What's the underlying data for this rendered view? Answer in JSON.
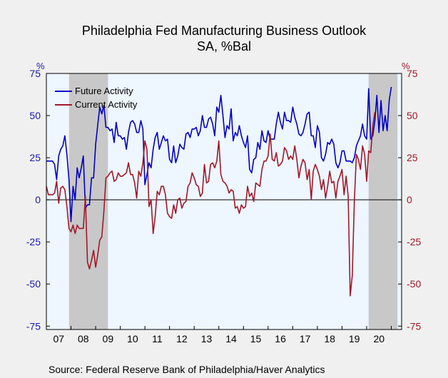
{
  "chart_data": {
    "type": "line",
    "title": "Philadelphia Fed Manufacturing Business Outlook",
    "subtitle": "SA, %Bal",
    "y_unit_left": "%",
    "y_unit_right": "%",
    "ylim": [
      -77,
      75
    ],
    "yticks": [
      75,
      50,
      25,
      0,
      -25,
      -50,
      -75
    ],
    "yticks_right": [
      75,
      50,
      25,
      0,
      -25,
      -50,
      -75
    ],
    "xlim": [
      2007.0,
      2021.42
    ],
    "xticks": [
      "07",
      "08",
      "09",
      "10",
      "11",
      "12",
      "13",
      "14",
      "15",
      "16",
      "17",
      "18",
      "19",
      "20"
    ],
    "recessions": [
      [
        2007.92,
        2009.5
      ],
      [
        2020.08,
        2021.25
      ]
    ],
    "legend_position": "top-left",
    "series": [
      {
        "name": "Future Activity",
        "color": "#0000c0",
        "start": 2007.0,
        "step": 0.0833333,
        "values": [
          23,
          23,
          23,
          23,
          21,
          12,
          26,
          30,
          32,
          38,
          27,
          12,
          -13,
          8,
          0,
          19,
          13,
          19,
          26,
          -5,
          -3,
          -3,
          13,
          13,
          33,
          44,
          55,
          51,
          56,
          43,
          43,
          41,
          42,
          34,
          46,
          38,
          38,
          36,
          37,
          30,
          40,
          46,
          47,
          45,
          40,
          40,
          47,
          42,
          9,
          15,
          22,
          19,
          30,
          37,
          40,
          30,
          34,
          38,
          35,
          36,
          24,
          22,
          32,
          22,
          26,
          33,
          31,
          30,
          39,
          40,
          37,
          42,
          42,
          43,
          38,
          41,
          50,
          43,
          43,
          48,
          49,
          45,
          38,
          55,
          52,
          62,
          50,
          37,
          44,
          42,
          54,
          35,
          40,
          38,
          44,
          38,
          34,
          31,
          38,
          18,
          16,
          24,
          25,
          34,
          30,
          41,
          35,
          34,
          41,
          36,
          36,
          36,
          45,
          52,
          46,
          42,
          52,
          47,
          47,
          46,
          55,
          49,
          45,
          39,
          38,
          40,
          45,
          51,
          52,
          38,
          38,
          31,
          44,
          40,
          25,
          23,
          27,
          34,
          33,
          36,
          33,
          22,
          19,
          22,
          29,
          29,
          23,
          23,
          23,
          22,
          25,
          32,
          35,
          38,
          45,
          38,
          36,
          66,
          36,
          38,
          47,
          62,
          40,
          59,
          41,
          50,
          41,
          59,
          67
        ]
      },
      {
        "name": "Current Activity",
        "color": "#a01828",
        "start": 2007.0,
        "step": 0.0833333,
        "values": [
          8,
          3,
          3,
          3,
          4,
          11,
          -2,
          7,
          8,
          6,
          -4,
          -17,
          -19,
          -15,
          -20,
          -15,
          -17,
          -17,
          -17,
          2,
          -37,
          -41,
          -36,
          -30,
          -40,
          -33,
          -24,
          -22,
          -7,
          13,
          14,
          16,
          17,
          11,
          12,
          16,
          14,
          14,
          15,
          16,
          22,
          15,
          15,
          10,
          1,
          17,
          14,
          22,
          35,
          30,
          -4,
          0,
          -20,
          -10,
          5,
          3,
          8,
          8,
          3,
          -8,
          -10,
          -11,
          -3,
          -8,
          0,
          1,
          -5,
          -2,
          -1,
          8,
          10,
          16,
          13,
          9,
          8,
          2,
          4,
          21,
          10,
          11,
          21,
          22,
          19,
          23,
          35,
          15,
          11,
          10,
          8,
          4,
          6,
          5,
          -5,
          -4,
          -8,
          -3,
          -5,
          -4,
          8,
          2,
          4,
          -1,
          10,
          9,
          8,
          18,
          23,
          23,
          26,
          39,
          24,
          23,
          28,
          20,
          21,
          23,
          31,
          29,
          24,
          26,
          24,
          32,
          24,
          13,
          20,
          24,
          22,
          12,
          18,
          0,
          17,
          21,
          18,
          14,
          6,
          12,
          1,
          8,
          17,
          10,
          11,
          1,
          11,
          14,
          18,
          3,
          14,
          2,
          -57,
          -45,
          -1,
          27,
          24,
          18,
          32,
          27,
          11,
          29,
          28,
          44,
          52
        ]
      }
    ],
    "source": "Source:  Federal Reserve Bank of Philadelphia/Haver Analytics"
  }
}
